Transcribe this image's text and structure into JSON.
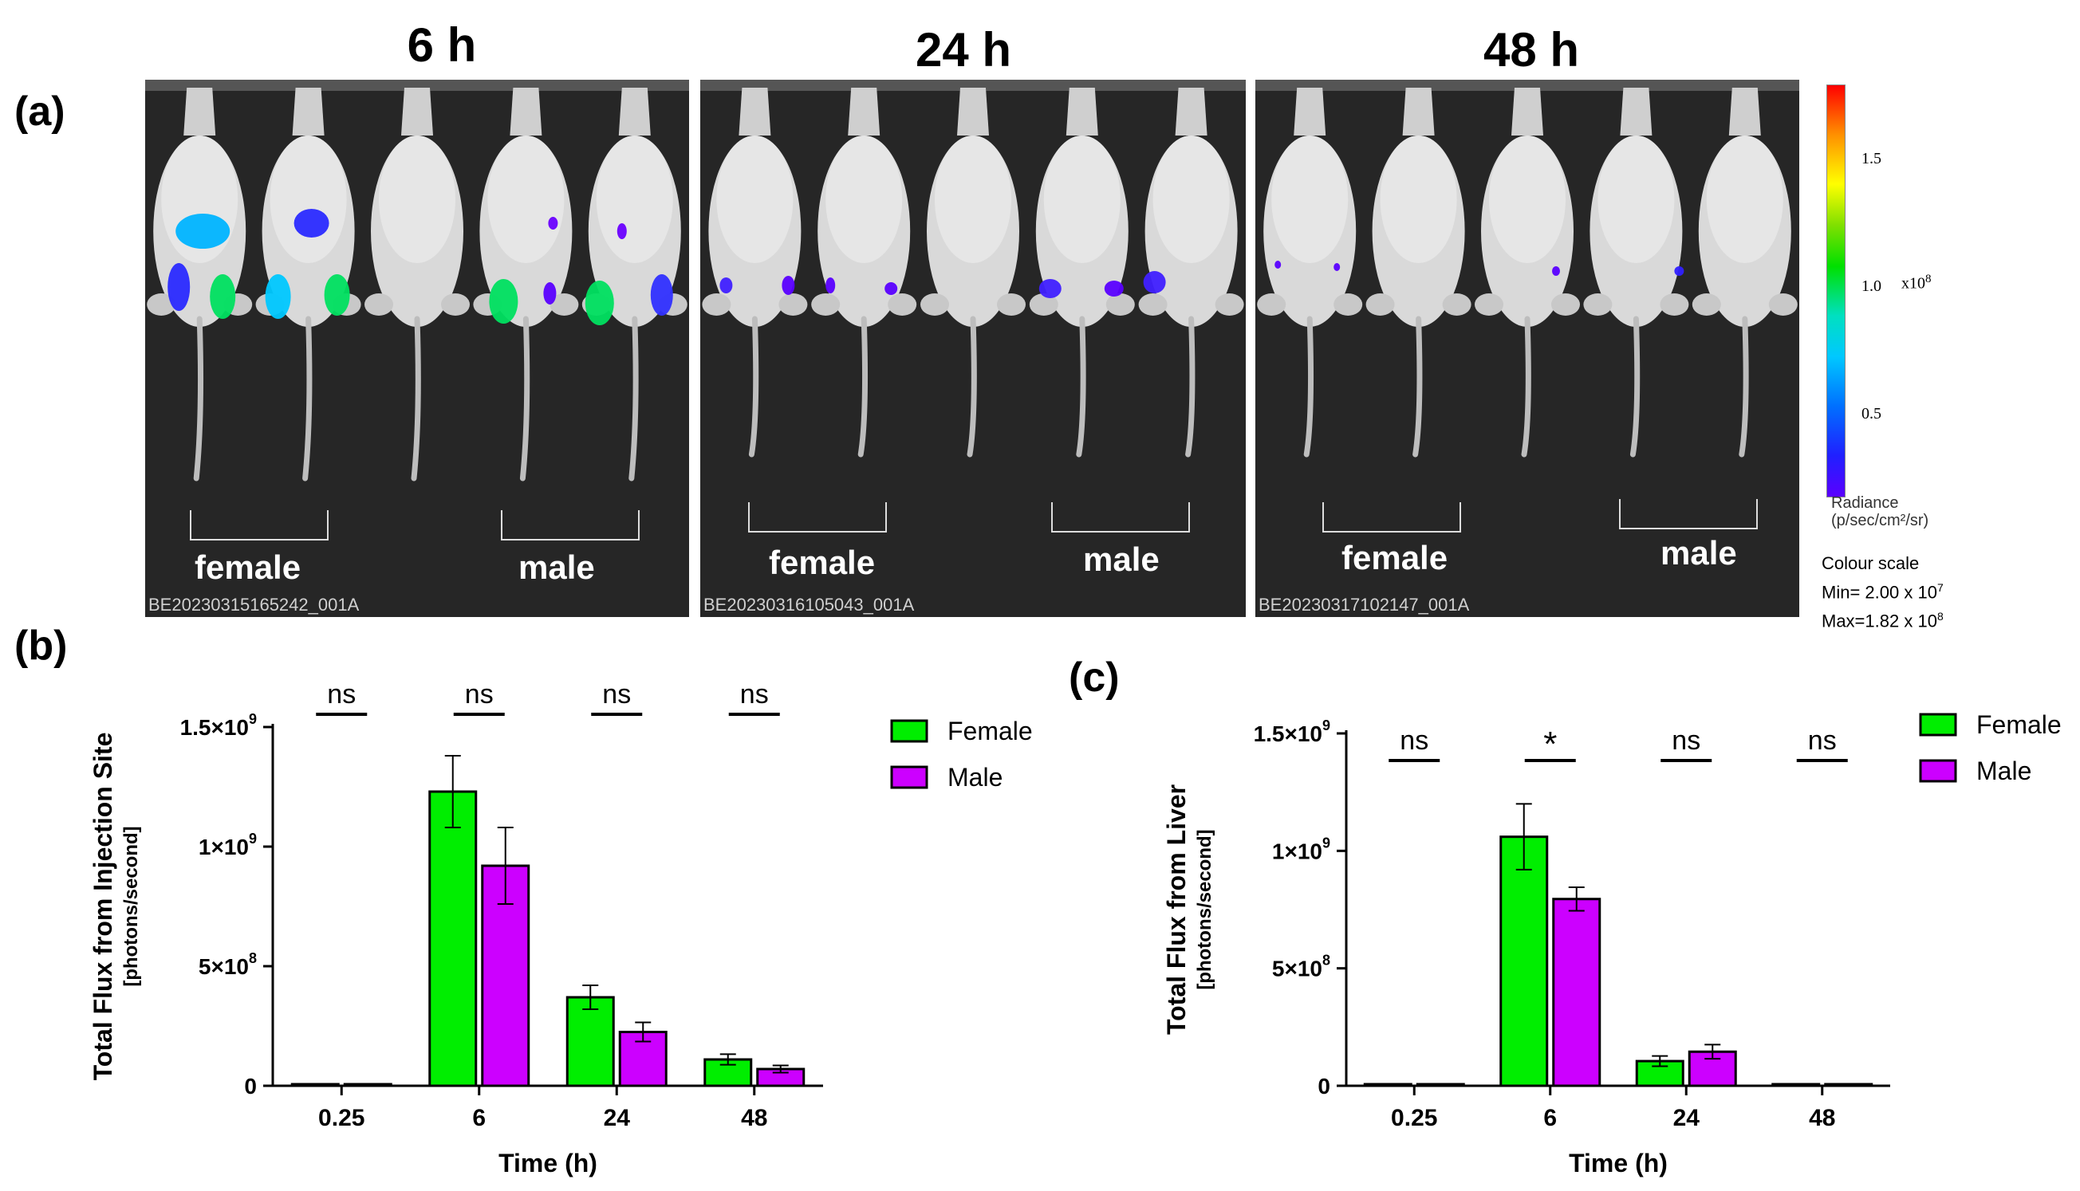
{
  "panel_labels": {
    "a": "(a)",
    "b": "(b)",
    "c": "(c)"
  },
  "imaging": {
    "panels": [
      {
        "time": "6 h",
        "image_id": "BE20230315165242_001A",
        "female_label": "female",
        "male_label": "male"
      },
      {
        "time": "24 h",
        "image_id": "BE20230316105043_001A",
        "female_label": "female",
        "male_label": "male"
      },
      {
        "time": "48 h",
        "image_id": "BE20230317102147_001A",
        "female_label": "female",
        "male_label": "male"
      }
    ],
    "colorbar": {
      "ticks": [
        "1.5",
        "1.0",
        "0.5"
      ],
      "multiplier_base": "x10",
      "multiplier_exp": "8",
      "unit_line1": "Radiance",
      "unit_line2": "(p/sec/cm²/sr)",
      "scale_title": "Colour scale",
      "min_text": "Min= 2.00 x 10",
      "min_exp": "7",
      "max_text": "Max=1.82 x 10",
      "max_exp": "8"
    }
  },
  "colors": {
    "female": "#00ee00",
    "male": "#cc00ff"
  },
  "chart_data": [
    {
      "panel": "b",
      "type": "bar",
      "categories": [
        "0.25",
        "6",
        "24",
        "48"
      ],
      "series": [
        {
          "name": "Female",
          "values": [
            5000000,
            1230000000,
            370000000,
            110000000
          ],
          "errors": [
            1000000,
            150000000,
            50000000,
            22000000
          ]
        },
        {
          "name": "Male",
          "values": [
            5000000,
            920000000,
            225000000,
            70000000
          ],
          "errors": [
            1000000,
            160000000,
            40000000,
            15000000
          ]
        }
      ],
      "xlabel": "Time (h)",
      "ylabel": "Total Flux from Injection Site",
      "ylabel2": "[photons/second]",
      "ylim": [
        0,
        1500000000
      ],
      "yticks": [
        {
          "value": 0,
          "label": "0",
          "exp": ""
        },
        {
          "value": 500000000,
          "label": "5×10",
          "exp": "8"
        },
        {
          "value": 1000000000,
          "label": "1×10",
          "exp": "9"
        },
        {
          "value": 1500000000,
          "label": "1.5×10",
          "exp": "9"
        }
      ],
      "significance": [
        "ns",
        "ns",
        "ns",
        "ns"
      ],
      "legend": [
        "Female",
        "Male"
      ]
    },
    {
      "panel": "c",
      "type": "bar",
      "categories": [
        "0.25",
        "6",
        "24",
        "48"
      ],
      "series": [
        {
          "name": "Female",
          "values": [
            0,
            1060000000,
            105000000,
            0
          ],
          "errors": [
            0,
            140000000,
            22000000,
            0
          ]
        },
        {
          "name": "Male",
          "values": [
            5000000,
            795000000,
            145000000,
            3000000
          ],
          "errors": [
            1000000,
            50000000,
            30000000,
            1000000
          ]
        }
      ],
      "xlabel": "Time (h)",
      "ylabel": "Total Flux from Liver",
      "ylabel2": "[photons/second]",
      "ylim": [
        0,
        1500000000
      ],
      "yticks": [
        {
          "value": 0,
          "label": "0",
          "exp": ""
        },
        {
          "value": 500000000,
          "label": "5×10",
          "exp": "8"
        },
        {
          "value": 1000000000,
          "label": "1×10",
          "exp": "9"
        },
        {
          "value": 1500000000,
          "label": "1.5×10",
          "exp": "9"
        }
      ],
      "significance": [
        "ns",
        "*",
        "ns",
        "ns"
      ],
      "legend": [
        "Female",
        "Male"
      ]
    }
  ]
}
